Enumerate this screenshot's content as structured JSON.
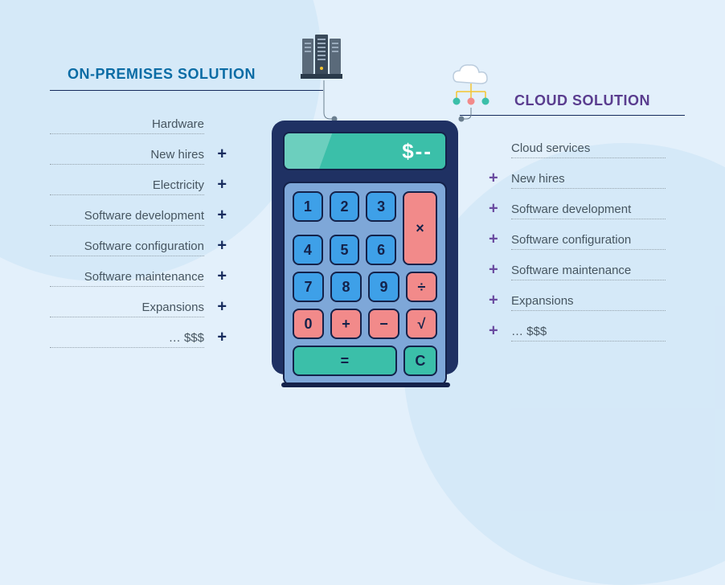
{
  "titles": {
    "left": "ON-PREMISES SOLUTION",
    "right": "CLOUD SOLUTION"
  },
  "calculator": {
    "display": "$--"
  },
  "keys": {
    "1": "1",
    "2": "2",
    "3": "3",
    "4": "4",
    "5": "5",
    "6": "6",
    "7": "7",
    "8": "8",
    "9": "9",
    "0": "0",
    "times": "×",
    "div": "÷",
    "plus": "+",
    "minus": "−",
    "root": "√",
    "eq": "=",
    "c": "C"
  },
  "onprem": {
    "items": [
      "Hardware",
      "New hires",
      "Electricity",
      "Software development",
      "Software configuration",
      "Software maintenance",
      "Expansions",
      "… $$$"
    ],
    "plus": "+"
  },
  "cloud": {
    "items": [
      "Cloud services",
      "New hires",
      "Software development",
      "Software configuration",
      "Software maintenance",
      "Expansions",
      "… $$$"
    ],
    "plus": "+"
  },
  "colors": {
    "background": "#e3f0fb",
    "onprem_title": "#0b6ca5",
    "cloud_title": "#5a3d8f",
    "item_text": "#465560",
    "calc_body": "#1f3163",
    "calc_pad": "#7ea7d8",
    "key_num": "#3ea0e8",
    "key_pink": "#f28a8a",
    "key_teal": "#3bbfa9"
  }
}
